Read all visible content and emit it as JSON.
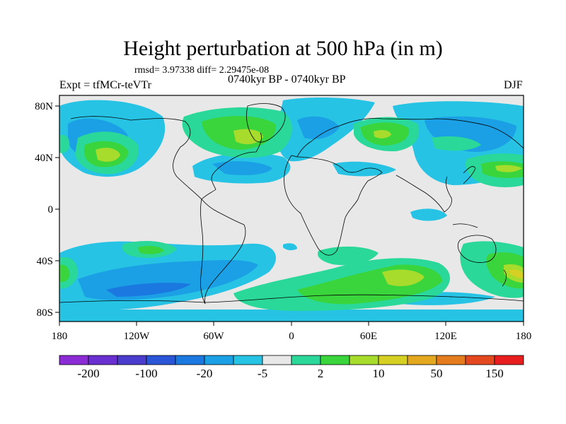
{
  "header": {
    "title": "Height perturbation at 500 hPa (in m)",
    "stats": "rmsd= 3.97338 diff= 2.29475e-08",
    "experiment": "Expt = tfMCr-teVTr",
    "period": "0740kyr BP - 0740kyr BP",
    "season": "DJF"
  },
  "axes": {
    "lat_ticks": [
      "80N",
      "40N",
      "0",
      "40S",
      "80S"
    ],
    "lon_ticks": [
      "180",
      "120W",
      "60W",
      "0",
      "60E",
      "120E",
      "180"
    ]
  },
  "colorbar": {
    "colors": [
      "#8b2bd6",
      "#6a2fd0",
      "#4a3ccd",
      "#2a55d6",
      "#1b78e0",
      "#1ba0e6",
      "#26c3e4",
      "#e8e8e8",
      "#2ad89a",
      "#3ad43c",
      "#a7dc2c",
      "#d6d024",
      "#e4a81e",
      "#e47c1e",
      "#e4481e",
      "#e81e1e"
    ],
    "labels": [
      "-200",
      "-100",
      "-20",
      "-5",
      "2",
      "10",
      "50",
      "150"
    ]
  }
}
